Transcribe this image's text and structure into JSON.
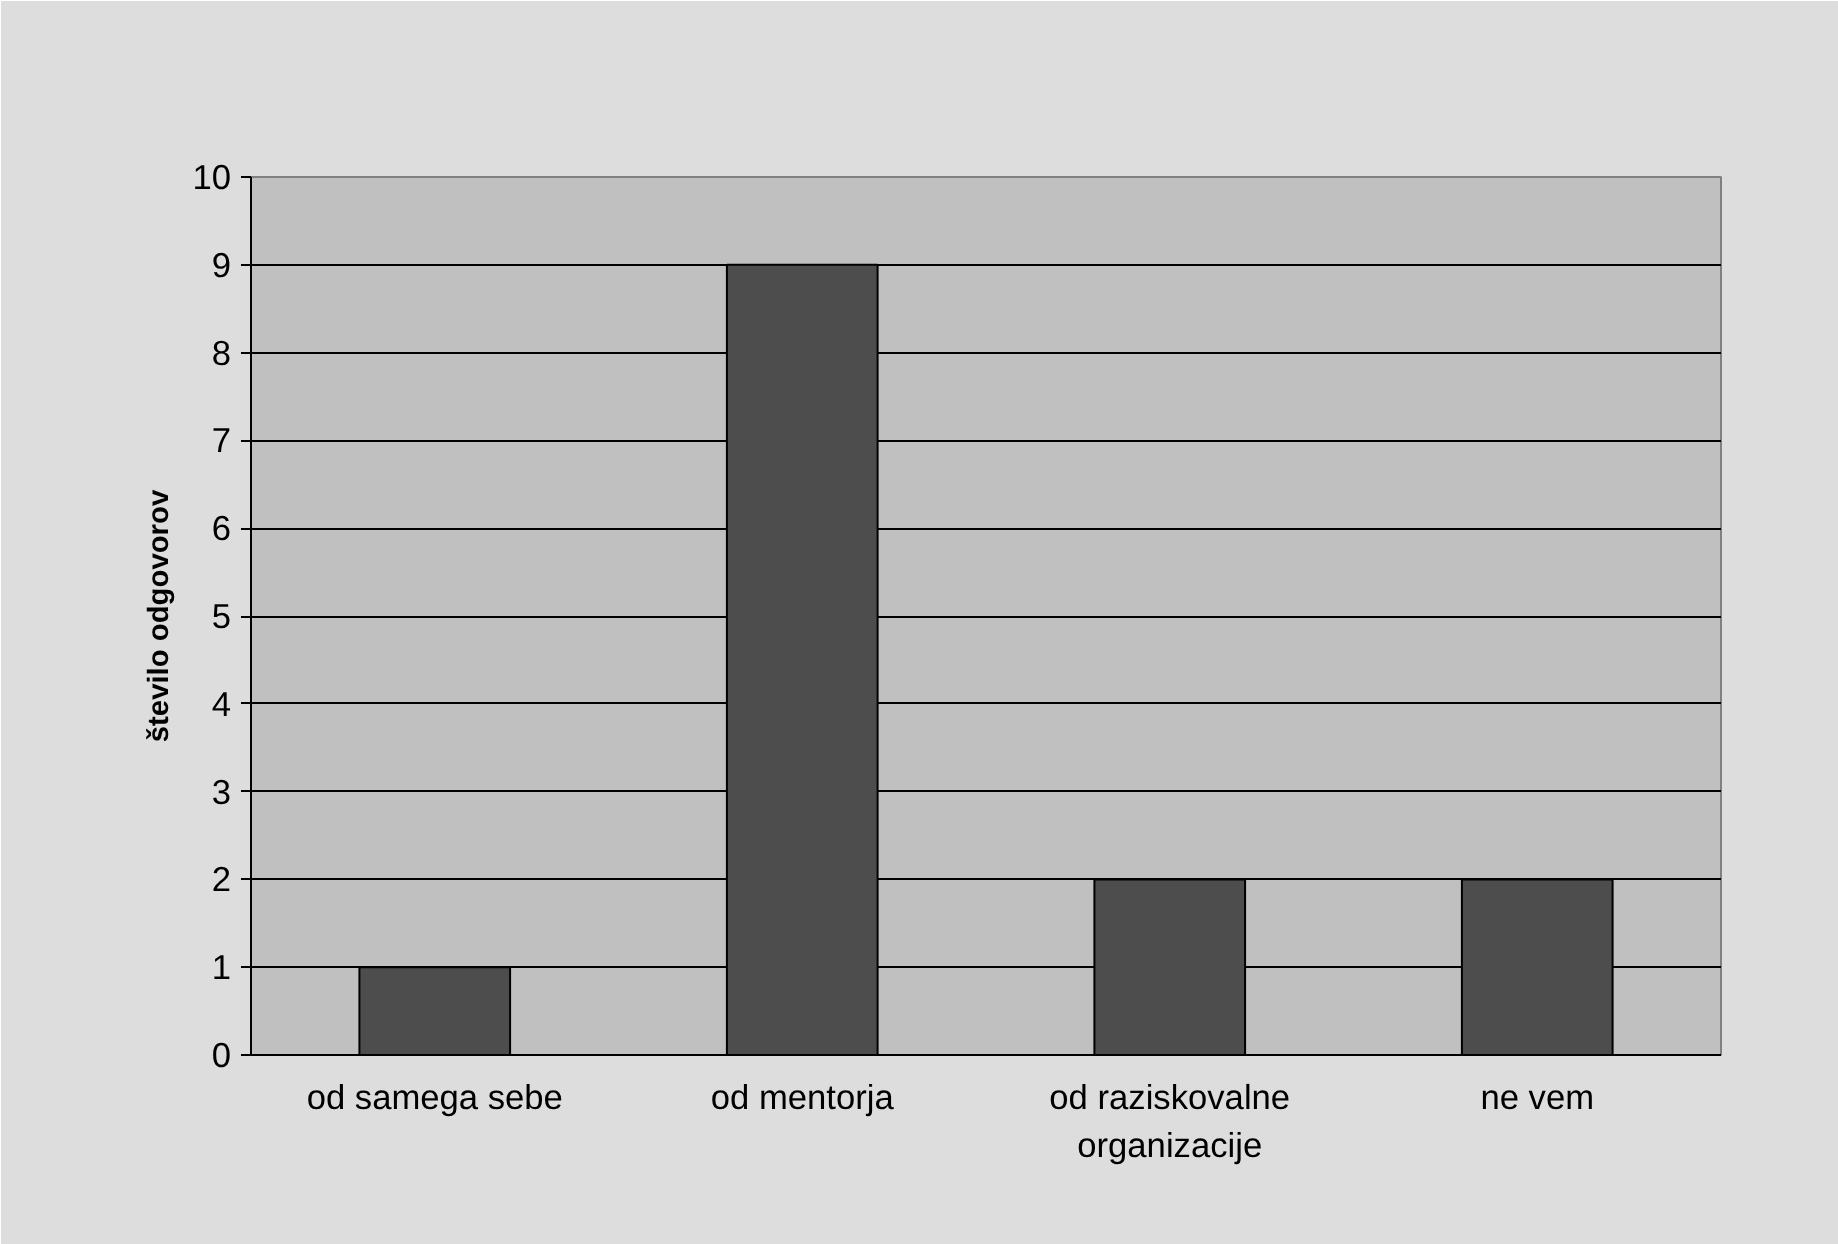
{
  "chart_data": {
    "type": "bar",
    "ylabel": "število odgovorov",
    "categories": [
      "od samega sebe",
      "od mentorja",
      "od raziskovalne organizacije",
      "ne vem"
    ],
    "values": [
      1,
      9,
      2,
      2
    ],
    "color": "#4d4d4d",
    "ylim": [
      0,
      10
    ],
    "yticks": [
      0,
      1,
      2,
      3,
      4,
      5,
      6,
      7,
      8,
      9,
      10
    ],
    "grid": "y"
  }
}
